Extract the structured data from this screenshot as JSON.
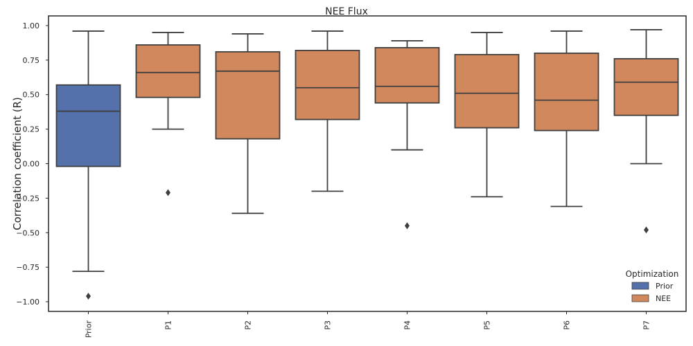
{
  "chart_data": {
    "type": "box",
    "title": "NEE Flux",
    "xlabel": "",
    "ylabel": "Correlation coefficient (R)",
    "ylim": [
      -1.07,
      1.07
    ],
    "yticks": [
      -1.0,
      -0.75,
      -0.5,
      -0.25,
      0.0,
      0.25,
      0.5,
      0.75,
      1.0
    ],
    "ytick_labels": [
      "−1.00",
      "−0.75",
      "−0.50",
      "−0.25",
      "0.00",
      "0.25",
      "0.50",
      "0.75",
      "1.00"
    ],
    "grid": false,
    "legend": {
      "title": "Optimization",
      "placement": "lower-right",
      "entries": [
        {
          "label": "Prior",
          "color": "#5471ab"
        },
        {
          "label": "NEE",
          "color": "#d1885c"
        }
      ]
    },
    "categories": [
      "Prior",
      "P1",
      "P2",
      "P3",
      "P4",
      "P5",
      "P6",
      "P7"
    ],
    "boxes": [
      {
        "category": "Prior",
        "group": "Prior",
        "whislo": -0.78,
        "q1": -0.02,
        "med": 0.38,
        "q3": 0.57,
        "whishi": 0.96,
        "fliers": [
          -0.96
        ]
      },
      {
        "category": "P1",
        "group": "NEE",
        "whislo": 0.25,
        "q1": 0.48,
        "med": 0.66,
        "q3": 0.86,
        "whishi": 0.95,
        "fliers": [
          -0.21
        ]
      },
      {
        "category": "P2",
        "group": "NEE",
        "whislo": -0.36,
        "q1": 0.18,
        "med": 0.67,
        "q3": 0.81,
        "whishi": 0.94,
        "fliers": []
      },
      {
        "category": "P3",
        "group": "NEE",
        "whislo": -0.2,
        "q1": 0.32,
        "med": 0.55,
        "q3": 0.82,
        "whishi": 0.96,
        "fliers": []
      },
      {
        "category": "P4",
        "group": "NEE",
        "whislo": 0.1,
        "q1": 0.44,
        "med": 0.56,
        "q3": 0.84,
        "whishi": 0.89,
        "fliers": [
          -0.45
        ]
      },
      {
        "category": "P5",
        "group": "NEE",
        "whislo": -0.24,
        "q1": 0.26,
        "med": 0.51,
        "q3": 0.79,
        "whishi": 0.95,
        "fliers": []
      },
      {
        "category": "P6",
        "group": "NEE",
        "whislo": -0.31,
        "q1": 0.24,
        "med": 0.46,
        "q3": 0.8,
        "whishi": 0.96,
        "fliers": []
      },
      {
        "category": "P7",
        "group": "NEE",
        "whislo": 0.0,
        "q1": 0.35,
        "med": 0.59,
        "q3": 0.76,
        "whishi": 0.97,
        "fliers": [
          -0.48
        ]
      }
    ],
    "colors": {
      "Prior": "#5471ab",
      "NEE": "#d1885c",
      "line": "#3f3f3f",
      "axes": "#262626"
    }
  }
}
